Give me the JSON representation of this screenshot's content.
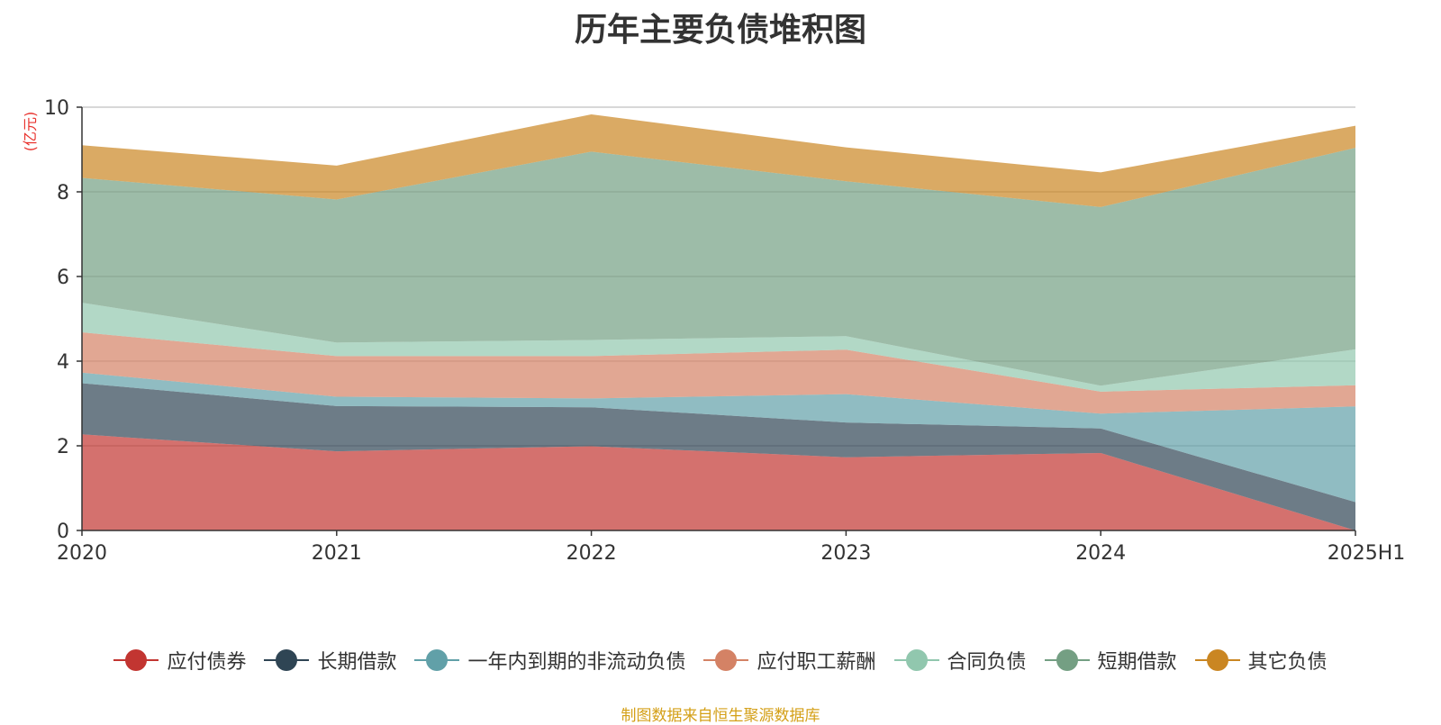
{
  "chart_data": {
    "type": "area",
    "stacked": true,
    "title": "历年主要负债堆积图",
    "unit_label": "(亿元)",
    "x": [
      "2020",
      "2021",
      "2022",
      "2023",
      "2024",
      "2025H1"
    ],
    "ylim": [
      0,
      10
    ],
    "yticks": [
      0,
      2,
      4,
      6,
      8,
      10
    ],
    "grid": true,
    "legend_position": "bottom",
    "series": [
      {
        "name": "应付债券",
        "color": "#c23531",
        "values": [
          2.27,
          1.87,
          1.99,
          1.73,
          1.83,
          0.0
        ]
      },
      {
        "name": "长期借款",
        "color": "#2f4554",
        "values": [
          1.21,
          1.07,
          0.92,
          0.82,
          0.58,
          0.67
        ]
      },
      {
        "name": "一年内到期的非流动负债",
        "color": "#61a0a8",
        "values": [
          0.25,
          0.22,
          0.21,
          0.67,
          0.35,
          2.26
        ]
      },
      {
        "name": "应付职工薪酬",
        "color": "#d48265",
        "values": [
          0.95,
          0.96,
          1.0,
          1.05,
          0.52,
          0.5
        ]
      },
      {
        "name": "合同负债",
        "color": "#91c7ae",
        "values": [
          0.7,
          0.32,
          0.38,
          0.32,
          0.14,
          0.85
        ]
      },
      {
        "name": "短期借款",
        "color": "#749f83",
        "values": [
          2.95,
          3.38,
          4.45,
          3.66,
          4.22,
          4.76
        ]
      },
      {
        "name": "其它负债",
        "color": "#ca8622",
        "values": [
          0.77,
          0.8,
          0.88,
          0.8,
          0.82,
          0.52
        ]
      }
    ],
    "source_note": "制图数据来自恒生聚源数据库"
  }
}
